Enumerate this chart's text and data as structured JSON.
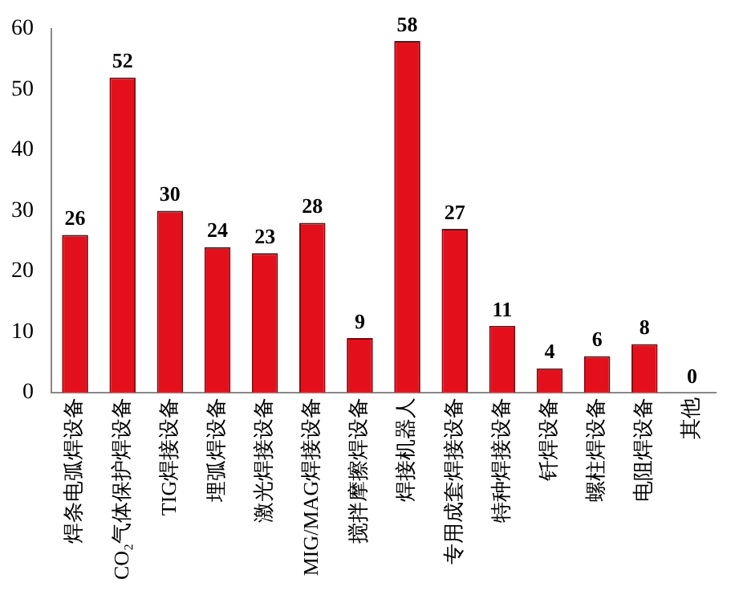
{
  "chart_data": {
    "type": "bar",
    "categories": [
      "焊条电弧焊设备",
      "CO₂气体保护焊设备",
      "TIG焊接设备",
      "埋弧焊设备",
      "激光焊接设备",
      "MIG/MAG焊接设备",
      "搅拌摩擦焊设备",
      "焊接机器人",
      "专用成套焊接设备",
      "特种焊接设备",
      "钎焊设备",
      "螺柱焊设备",
      "电阻焊设备",
      "其他"
    ],
    "values": [
      26,
      52,
      30,
      24,
      23,
      28,
      9,
      58,
      27,
      11,
      4,
      6,
      8,
      0
    ],
    "color": "#e3101c",
    "ylim": [
      0,
      60
    ],
    "yticks": [
      0,
      10,
      20,
      30,
      40,
      50,
      60
    ],
    "data_labels": true,
    "grid": false,
    "legend": false
  }
}
